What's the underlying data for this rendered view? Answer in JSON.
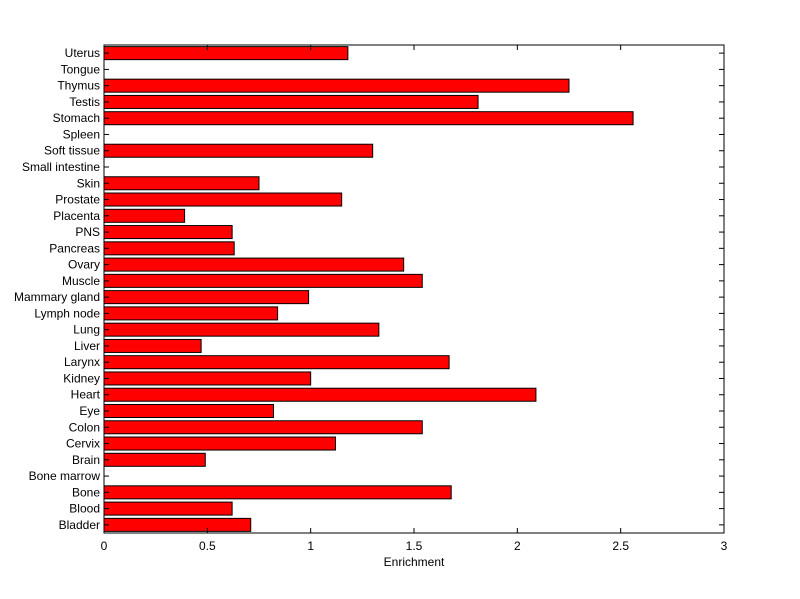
{
  "chart_data": {
    "type": "bar",
    "orientation": "horizontal",
    "xlabel": "Enrichment",
    "ylabel": "",
    "title": "",
    "xlim": [
      0,
      3
    ],
    "xticks": [
      0,
      0.5,
      1,
      1.5,
      2,
      2.5,
      3
    ],
    "xtick_labels": [
      "0",
      "0.5",
      "1",
      "1.5",
      "2",
      "2.5",
      "3"
    ],
    "grid": false,
    "bar_color": "#ff0000",
    "edge_color": "#000000",
    "categories": [
      "Bladder",
      "Blood",
      "Bone",
      "Bone marrow",
      "Brain",
      "Cervix",
      "Colon",
      "Eye",
      "Heart",
      "Kidney",
      "Larynx",
      "Liver",
      "Lung",
      "Lymph node",
      "Mammary gland",
      "Muscle",
      "Ovary",
      "Pancreas",
      "PNS",
      "Placenta",
      "Prostate",
      "Skin",
      "Small intestine",
      "Soft tissue",
      "Spleen",
      "Stomach",
      "Testis",
      "Thymus",
      "Tongue",
      "Uterus"
    ],
    "values": [
      0.71,
      0.62,
      1.68,
      0,
      0.49,
      1.12,
      1.54,
      0.82,
      2.09,
      1.0,
      1.67,
      0.47,
      1.33,
      0.84,
      0.99,
      1.54,
      1.45,
      0.63,
      0.62,
      0.39,
      1.15,
      0.75,
      0,
      1.3,
      0,
      2.56,
      1.81,
      2.25,
      0,
      1.18
    ]
  }
}
